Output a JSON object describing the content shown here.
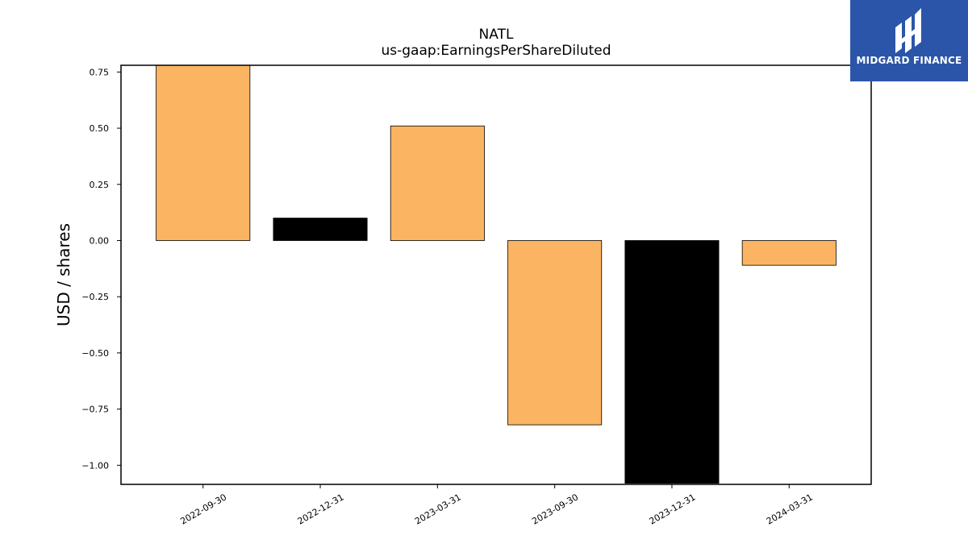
{
  "brand": {
    "name": "MIDGARD FINANCE",
    "bg_color": "#2b55a8"
  },
  "chart_data": {
    "type": "bar",
    "title": "NATL",
    "subtitle": "us-gaap:EarningsPerShareDiluted",
    "ylabel": "USD / shares",
    "xlabel": "",
    "categories": [
      "2022-09-30",
      "2022-12-31",
      "2023-03-31",
      "2023-09-30",
      "2023-12-31",
      "2024-03-31"
    ],
    "values": [
      0.78,
      0.1,
      0.51,
      -0.82,
      -1.08,
      -0.11
    ],
    "bar_colors": [
      "#fbb462",
      "#000000",
      "#fbb462",
      "#fbb462",
      "#000000",
      "#fbb462"
    ],
    "ylim": [
      -1.085,
      0.78
    ],
    "yticks": [
      0.75,
      0.5,
      0.25,
      0.0,
      -0.25,
      -0.5,
      -0.75,
      -1.0
    ],
    "ytick_labels": [
      "0.75",
      "0.50",
      "0.25",
      "0.00",
      "−0.25",
      "−0.50",
      "−0.75",
      "−1.00"
    ],
    "grid": false,
    "legend": "none"
  }
}
